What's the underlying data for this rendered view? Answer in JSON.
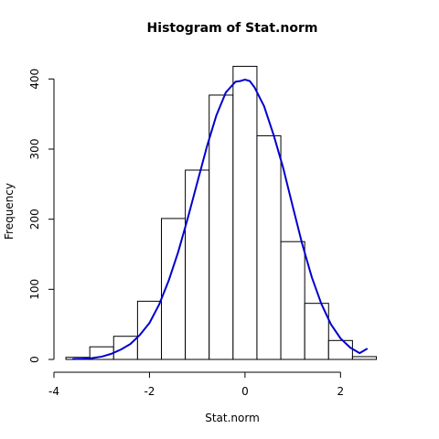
{
  "chart_data": {
    "type": "bar",
    "title": "Histogram of Stat.norm",
    "xlabel": "Stat.norm",
    "ylabel": "Frequency",
    "xlim": [
      -4,
      3.2
    ],
    "ylim": [
      0,
      420
    ],
    "xticks": [
      -4,
      -2,
      0,
      2
    ],
    "yticks": [
      0,
      100,
      200,
      300,
      400
    ],
    "bins": [
      {
        "start": -3.75,
        "end": -3.25,
        "count": 3
      },
      {
        "start": -3.25,
        "end": -2.75,
        "count": 18
      },
      {
        "start": -2.75,
        "end": -2.25,
        "count": 33
      },
      {
        "start": -2.25,
        "end": -1.75,
        "count": 83
      },
      {
        "start": -1.75,
        "end": -1.25,
        "count": 201
      },
      {
        "start": -1.25,
        "end": -0.75,
        "count": 270
      },
      {
        "start": -0.75,
        "end": -0.25,
        "count": 377
      },
      {
        "start": -0.25,
        "end": 0.25,
        "count": 418
      },
      {
        "start": 0.25,
        "end": 0.75,
        "count": 319
      },
      {
        "start": 0.75,
        "end": 1.25,
        "count": 168
      },
      {
        "start": 1.25,
        "end": 1.75,
        "count": 80
      },
      {
        "start": 1.75,
        "end": 2.25,
        "count": 27
      },
      {
        "start": 2.25,
        "end": 2.75,
        "count": 4
      }
    ],
    "density_curve": {
      "color": "#0000cc",
      "x": [
        -3.6,
        -3.4,
        -3.2,
        -3.0,
        -2.8,
        -2.6,
        -2.4,
        -2.2,
        -2.0,
        -1.8,
        -1.6,
        -1.4,
        -1.2,
        -1.0,
        -0.8,
        -0.6,
        -0.4,
        -0.2,
        -0.1,
        0.0,
        0.1,
        0.2,
        0.4,
        0.6,
        0.8,
        1.0,
        1.2,
        1.4,
        1.6,
        1.8,
        2.0,
        2.2,
        2.4,
        2.55
      ],
      "y": [
        0.5,
        1,
        2,
        4,
        8,
        14,
        22,
        35,
        52,
        78,
        112,
        153,
        201,
        252,
        303,
        348,
        381,
        396,
        397,
        399,
        397,
        388,
        361,
        320,
        273,
        218,
        164,
        117,
        79,
        50,
        30,
        17,
        9,
        15
      ]
    },
    "bar_fill": "#ffffff",
    "bar_stroke": "#000000"
  }
}
